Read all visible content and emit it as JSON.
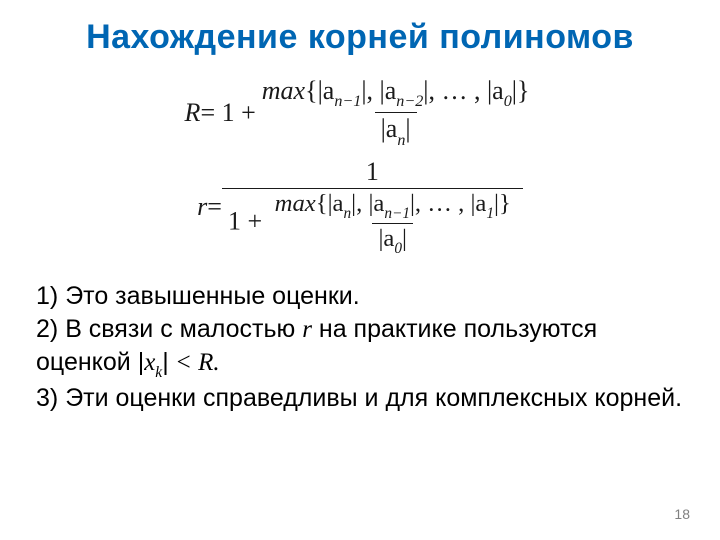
{
  "title": "Нахождение корней полиномов",
  "formula_R": {
    "lhs": "R",
    "eq": " = 1 + ",
    "num_prefix": "max",
    "num_body": "{|a",
    "sub1": "n−1",
    "mid1": "|, |a",
    "sub2": "n−2",
    "mid2": "|, … , |a",
    "sub3": "0",
    "num_suffix": "|}",
    "den_prefix": "|a",
    "den_sub": "n",
    "den_suffix": "|"
  },
  "formula_r": {
    "lhs": "r",
    "eq": " = ",
    "outer_num": "1",
    "outer_den_prefix": "1 + ",
    "num_prefix": "max",
    "num_body": "{|a",
    "sub1": "n",
    "mid1": "|, |a",
    "sub2": "n−1",
    "mid2": "|, … , |a",
    "sub3": "1",
    "num_suffix": "|}",
    "den_prefix": "|a",
    "den_sub": "0",
    "den_suffix": "|"
  },
  "notes": {
    "n1_num": "1) ",
    "n1": "Это завышенные оценки.",
    "n2_num": "2) ",
    "n2a": "В связи с малостью ",
    "n2_r": "r",
    "n2b": " на практике пользуются оценкой ",
    "n2_expr_open": "|",
    "n2_x": "x",
    "n2_sub": "k",
    "n2_expr_close": "|",
    "n2_lt": " < ",
    "n2_R": "R",
    "n2_dot": ".",
    "n3_num": "3) ",
    "n3": "Эти оценки справедливы и для комплексных корней."
  },
  "page_number": "18",
  "colors": {
    "title": "#0066b3",
    "text": "#000000",
    "background": "#ffffff",
    "pagenum": "#808080"
  }
}
